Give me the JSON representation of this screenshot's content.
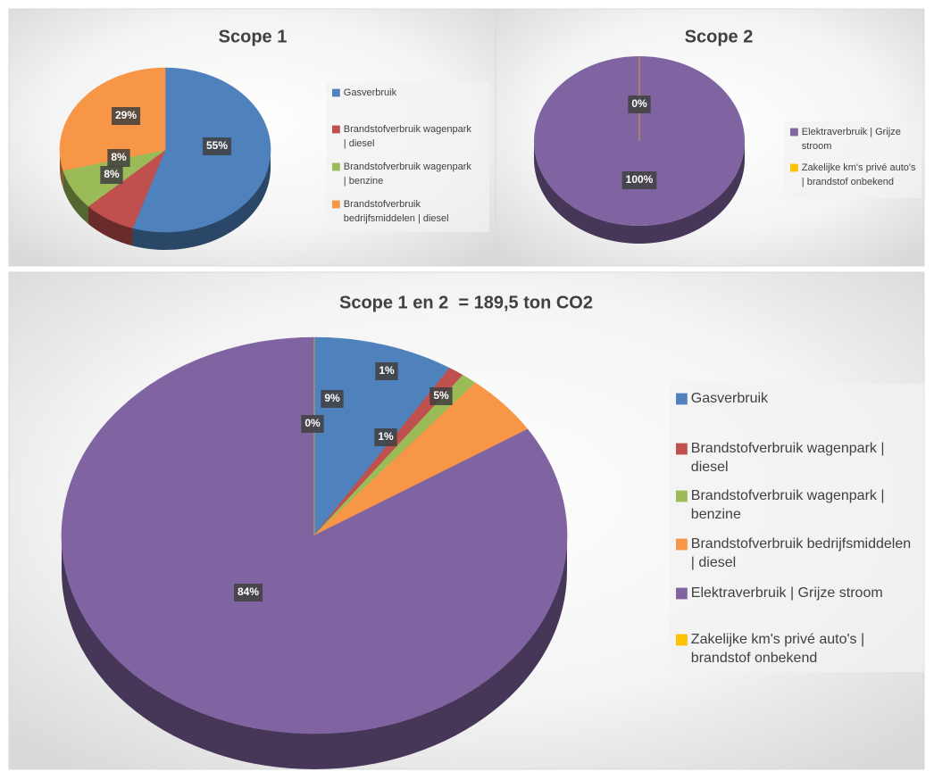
{
  "chart_data": [
    {
      "type": "pie",
      "title": "Scope 1",
      "categories": [
        "Gasverbruik",
        "Brandstofverbruik wagenpark | diesel",
        "Brandstofverbruik wagenpark | benzine",
        "Brandstofverbruik bedrijfsmiddelen | diesel"
      ],
      "values": [
        55,
        8,
        8,
        29
      ],
      "value_labels": [
        "55%",
        "8%",
        "8%",
        "29%"
      ],
      "colors": [
        "#4f81bd",
        "#c0504d",
        "#9bbb59",
        "#f79646"
      ],
      "legend": "right"
    },
    {
      "type": "pie",
      "title": "Scope 2",
      "categories": [
        "Elektraverbruik | Grijze stroom",
        "Zakelijke km's privé auto's | brandstof onbekend"
      ],
      "values": [
        100,
        0
      ],
      "value_labels": [
        "100%",
        "0%"
      ],
      "colors": [
        "#8064a2",
        "#ffc000"
      ],
      "legend": "right"
    },
    {
      "type": "pie",
      "title": "Scope 1 en 2  = 189,5 ton CO2",
      "categories": [
        "Gasverbruik",
        "Brandstofverbruik wagenpark | diesel",
        "Brandstofverbruik wagenpark | benzine",
        "Brandstofverbruik bedrijfsmiddelen | diesel",
        "Elektraverbruik | Grijze stroom",
        "Zakelijke km's privé auto's | brandstof onbekend"
      ],
      "values": [
        9,
        1,
        1,
        5,
        84,
        0
      ],
      "value_labels": [
        "9%",
        "1%",
        "1%",
        "5%",
        "84%",
        "0%"
      ],
      "colors": [
        "#4f81bd",
        "#c0504d",
        "#9bbb59",
        "#f79646",
        "#8064a2",
        "#ffc000"
      ],
      "legend": "right"
    }
  ]
}
